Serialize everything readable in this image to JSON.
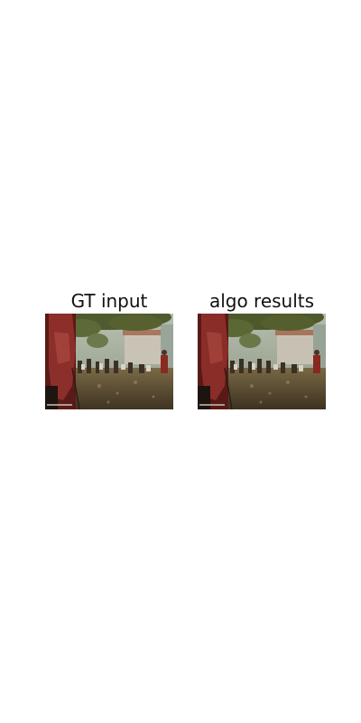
{
  "panels": [
    {
      "title": "GT input"
    },
    {
      "title": "algo results"
    }
  ],
  "image_description": "Street scene photograph: a figure in a red garment in the left foreground, foliage across the top, a crowd of people and a light building in the background, a dusty brown ground in the foreground."
}
